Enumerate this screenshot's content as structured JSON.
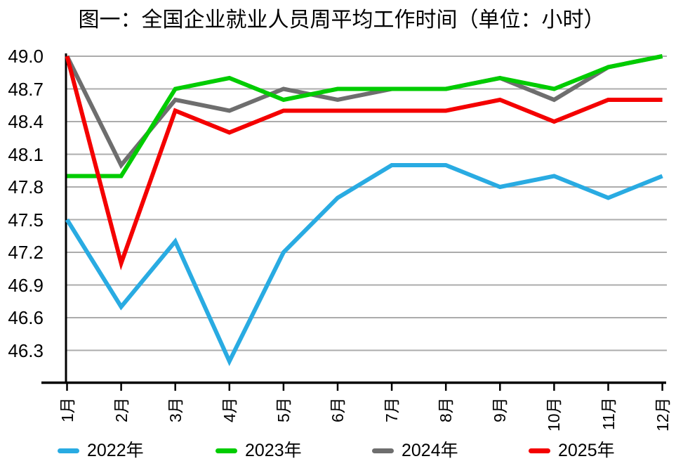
{
  "title": "图一：全国企业就业人员周平均工作时间（单位：小时）",
  "chart_data": {
    "type": "line",
    "title": "图一：全国企业就业人员周平均工作时间（单位：小时）",
    "unit": "小时",
    "categories": [
      "1月",
      "2月",
      "3月",
      "4月",
      "5月",
      "6月",
      "7月",
      "8月",
      "9月",
      "10月",
      "11月",
      "12月"
    ],
    "series": [
      {
        "name": "2022年",
        "color": "#29ABE2",
        "values": [
          47.5,
          46.7,
          47.3,
          46.2,
          47.2,
          47.7,
          48.0,
          48.0,
          47.8,
          47.9,
          47.7,
          47.9
        ]
      },
      {
        "name": "2023年",
        "color": "#00CC00",
        "values": [
          47.9,
          47.9,
          48.7,
          48.8,
          48.6,
          48.7,
          48.7,
          48.7,
          48.8,
          48.7,
          48.9,
          49.0
        ]
      },
      {
        "name": "2024年",
        "color": "#6E6E6E",
        "values": [
          49.0,
          48.0,
          48.6,
          48.5,
          48.7,
          48.6,
          48.7,
          48.7,
          48.8,
          48.6,
          48.9,
          49.0
        ]
      },
      {
        "name": "2025年",
        "color": "#F40000",
        "values": [
          49.0,
          47.1,
          48.5,
          48.3,
          48.5,
          48.5,
          48.5,
          48.5,
          48.6,
          48.4,
          48.6,
          48.6
        ]
      }
    ],
    "ylim": [
      46.3,
      49.0
    ],
    "yticks": [
      "49.0",
      "48.7",
      "48.4",
      "48.1",
      "47.8",
      "47.5",
      "47.2",
      "46.9",
      "46.6",
      "46.3"
    ],
    "grid": true,
    "gridline_color": "#ACACAC",
    "axis_color": "#000000",
    "legend_position": "bottom"
  }
}
